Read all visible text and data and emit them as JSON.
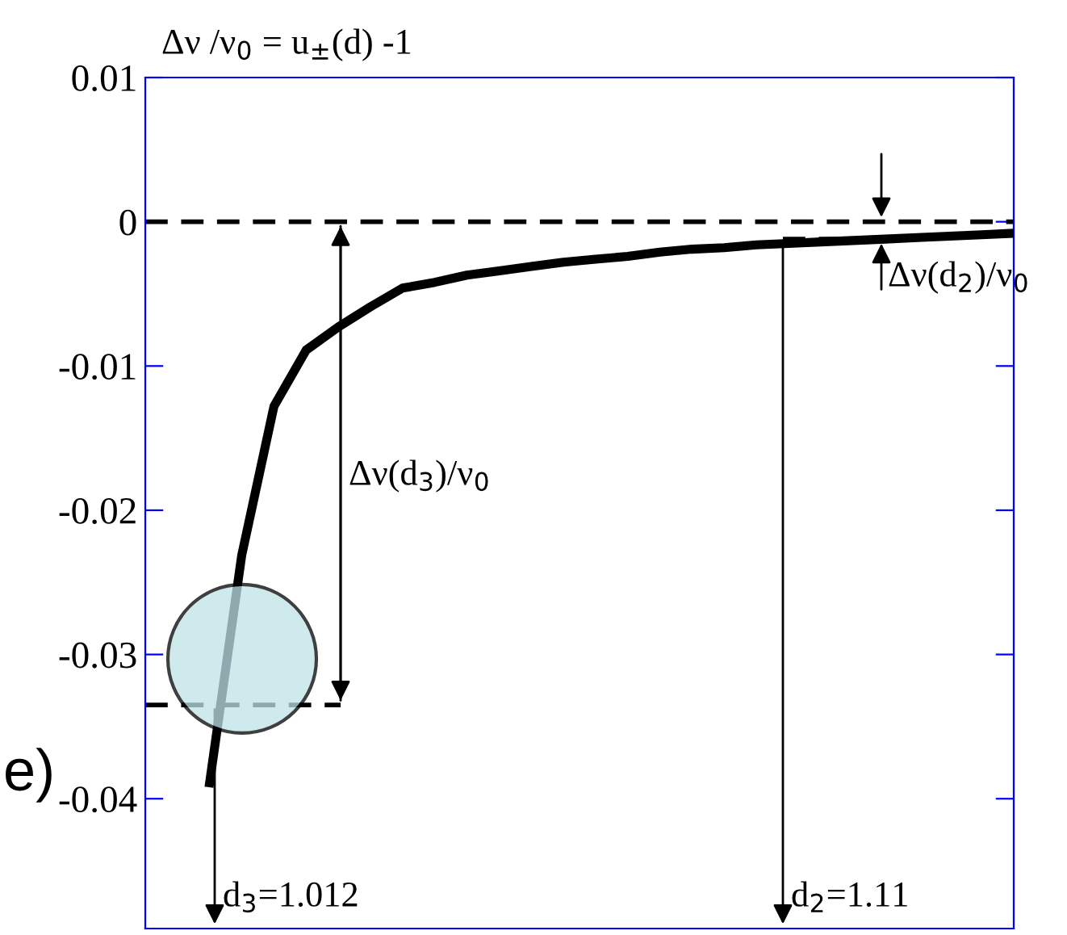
{
  "chart_data": {
    "type": "line",
    "ylabel": "Δν /ν$_{0}$ = u$_{±}$(d) -1",
    "categories": [
      null,
      null,
      null,
      null,
      null,
      null,
      null,
      null,
      null,
      null,
      null,
      null,
      null,
      null,
      null,
      null,
      null,
      null,
      null,
      null,
      null,
      null,
      null,
      null,
      null,
      null,
      null,
      null
    ],
    "series": [
      {
        "color": "#000000",
        "values": [
          null,
          null,
          -0.0389,
          -0.0231,
          -0.0128,
          -0.0089,
          -0.0073,
          -0.0059,
          -0.0046,
          -0.0042,
          -0.0037,
          -0.0034,
          -0.0031,
          -0.0028,
          -0.0026,
          -0.0024,
          -0.0021,
          -0.0019,
          -0.0018,
          -0.0016,
          -0.0015,
          -0.0014,
          -0.0013,
          -0.0012,
          -0.0011,
          -0.001,
          -0.0009,
          -0.0008
        ]
      }
    ],
    "ylim": [
      -0.049,
      0.01
    ],
    "yticks": [
      0.01,
      0,
      -0.01,
      -0.02,
      -0.03,
      -0.04
    ],
    "tick_labels": "y",
    "grid": false,
    "legend": false,
    "marker": "none",
    "line_style": "solid",
    "ref_lines": [
      {
        "axis": "y",
        "value": 0,
        "color": "#000000",
        "line_style": "dashed"
      },
      {
        "axis": "y",
        "value": -0.0335,
        "color": "#000000",
        "line_style": "dashed"
      },
      {
        "axis": "y",
        "value": -0.0012,
        "color": "#000000",
        "line_style": "dashed"
      }
    ],
    "annotations": [
      "Δν(d$_{3}$)/ν$_{0}$",
      "Δν(d$_{2}$)/ν$_{0}$",
      "d$_{3}$=1.012",
      "d$_{2}$=1.11",
      "e)"
    ]
  }
}
